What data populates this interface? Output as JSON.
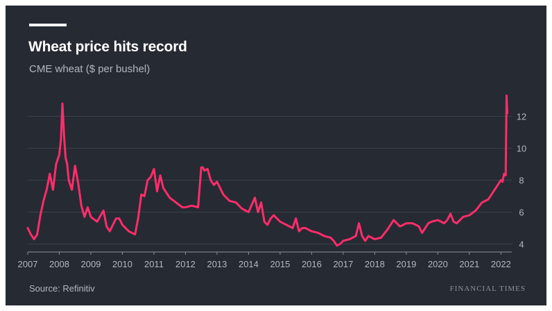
{
  "header": {
    "title": "Wheat price hits record",
    "subtitle": "CME wheat ($ per bushel)"
  },
  "footer": {
    "source": "Source: Refinitiv",
    "brand": "FINANCIAL TIMES"
  },
  "colors": {
    "background": "#262a33",
    "series": "#ff2d6b",
    "grid": "#3d414a",
    "text": "#ffffff",
    "muted": "#b4b7bd"
  },
  "chart_data": {
    "type": "line",
    "title": "Wheat price hits record",
    "subtitle": "CME wheat ($ per bushel)",
    "xlabel": "",
    "ylabel": "",
    "xlim": [
      2007.0,
      2022.3
    ],
    "ylim": [
      3.5,
      13.5
    ],
    "y_ticks": [
      4,
      6,
      8,
      10,
      12
    ],
    "x_ticks": [
      "2007",
      "2008",
      "2009",
      "2010",
      "2011",
      "2012",
      "2013",
      "2014",
      "2015",
      "2016",
      "2017",
      "2018",
      "2019",
      "2020",
      "2021",
      "2022"
    ],
    "y_axis_side": "right",
    "grid": "horizontal",
    "legend": "none",
    "series": [
      {
        "x": [
          2007.0,
          2007.1,
          2007.2,
          2007.3,
          2007.4,
          2007.5,
          2007.6,
          2007.7,
          2007.8,
          2007.9,
          2008.0,
          2008.05,
          2008.1,
          2008.15,
          2008.2,
          2008.25,
          2008.3,
          2008.4,
          2008.5,
          2008.6,
          2008.7,
          2008.8,
          2008.9,
          2009.0,
          2009.2,
          2009.4,
          2009.5,
          2009.6,
          2009.7,
          2009.8,
          2009.9,
          2010.0,
          2010.2,
          2010.4,
          2010.5,
          2010.6,
          2010.7,
          2010.8,
          2010.9,
          2011.0,
          2011.1,
          2011.2,
          2011.3,
          2011.5,
          2011.7,
          2011.9,
          2012.0,
          2012.2,
          2012.4,
          2012.5,
          2012.55,
          2012.6,
          2012.7,
          2012.8,
          2012.9,
          2013.0,
          2013.2,
          2013.4,
          2013.6,
          2013.8,
          2014.0,
          2014.2,
          2014.3,
          2014.4,
          2014.5,
          2014.6,
          2014.7,
          2014.8,
          2015.0,
          2015.2,
          2015.4,
          2015.5,
          2015.6,
          2015.7,
          2015.8,
          2016.0,
          2016.2,
          2016.4,
          2016.6,
          2016.7,
          2016.8,
          2016.9,
          2017.0,
          2017.2,
          2017.4,
          2017.5,
          2017.6,
          2017.7,
          2017.8,
          2018.0,
          2018.2,
          2018.4,
          2018.5,
          2018.6,
          2018.7,
          2018.8,
          2019.0,
          2019.2,
          2019.4,
          2019.5,
          2019.6,
          2019.7,
          2019.8,
          2020.0,
          2020.2,
          2020.3,
          2020.4,
          2020.5,
          2020.6,
          2020.8,
          2021.0,
          2021.2,
          2021.4,
          2021.6,
          2021.8,
          2021.9,
          2022.0,
          2022.05,
          2022.1,
          2022.15,
          2022.18,
          2022.2
        ],
        "y": [
          5.0,
          4.6,
          4.3,
          4.6,
          5.8,
          6.7,
          7.4,
          8.4,
          7.4,
          9.0,
          9.6,
          10.5,
          12.8,
          10.8,
          9.4,
          9.0,
          8.0,
          7.4,
          8.9,
          7.8,
          6.4,
          5.7,
          6.3,
          5.7,
          5.4,
          6.1,
          5.1,
          4.8,
          5.2,
          5.6,
          5.6,
          5.2,
          4.8,
          4.6,
          5.6,
          7.1,
          7.0,
          8.0,
          8.2,
          8.7,
          7.3,
          8.3,
          7.5,
          6.9,
          6.6,
          6.3,
          6.3,
          6.4,
          6.3,
          8.8,
          8.8,
          8.6,
          8.7,
          8.0,
          7.7,
          7.9,
          7.1,
          6.7,
          6.6,
          6.2,
          6.0,
          6.9,
          6.0,
          6.6,
          5.4,
          5.2,
          5.6,
          5.8,
          5.4,
          5.2,
          5.0,
          5.6,
          4.8,
          5.0,
          5.0,
          4.8,
          4.7,
          4.5,
          4.4,
          4.2,
          3.9,
          4.0,
          4.2,
          4.3,
          4.5,
          5.3,
          4.5,
          4.2,
          4.5,
          4.3,
          4.4,
          4.9,
          5.2,
          5.5,
          5.3,
          5.1,
          5.3,
          5.3,
          5.1,
          4.7,
          5.0,
          5.3,
          5.4,
          5.5,
          5.3,
          5.5,
          5.9,
          5.4,
          5.3,
          5.7,
          5.8,
          6.1,
          6.6,
          6.8,
          7.4,
          7.7,
          8.0,
          7.9,
          8.4,
          8.3,
          13.3,
          12.2
        ]
      }
    ]
  }
}
